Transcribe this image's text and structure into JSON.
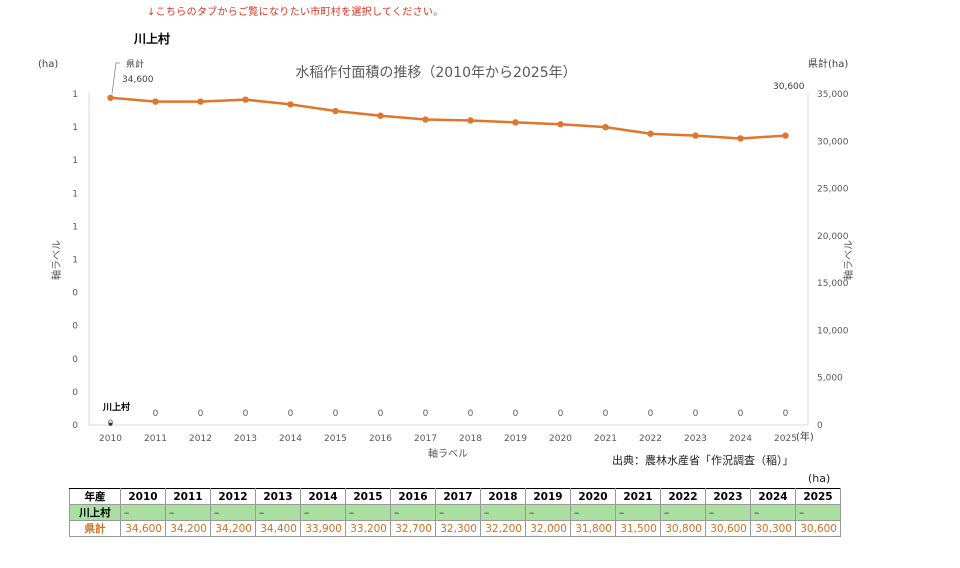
{
  "notice": "↓こちらのタブからご覧になりたい市町村を選択してください。",
  "village_name": "川上村",
  "source": "出典：農林水産省「作況調査（稲）」",
  "unit": "(ha)",
  "colors": {
    "prefecture_line": "#e0762d",
    "village_row_bg": "#a9dfa0",
    "notice": "#e03020"
  },
  "chart_data": {
    "type": "line",
    "title": "水稲作付面積の推移（2010年から2025年）",
    "x": [
      "2010",
      "2011",
      "2012",
      "2013",
      "2014",
      "2015",
      "2016",
      "2017",
      "2018",
      "2019",
      "2020",
      "2021",
      "2022",
      "2023",
      "2024",
      "2025"
    ],
    "x_unit": "(年)",
    "xlabel": "軸ラベル",
    "left_axis": {
      "label": "軸ラベル",
      "unit": "(ha)",
      "ticks": [
        "0",
        "0",
        "0",
        "0",
        "0",
        "1",
        "1",
        "1",
        "1",
        "1",
        "1"
      ]
    },
    "right_axis": {
      "label": "軸ラベル",
      "unit": "県計(ha)",
      "ylim": [
        0,
        35000
      ],
      "ticks": [
        "0",
        "5,000",
        "10,000",
        "15,000",
        "20,000",
        "25,000",
        "30,000",
        "35,000"
      ]
    },
    "series": [
      {
        "name": "県計",
        "axis": "right",
        "values": [
          34600,
          34200,
          34200,
          34400,
          33900,
          33200,
          32700,
          32300,
          32200,
          32000,
          31800,
          31500,
          30800,
          30600,
          30300,
          30600
        ]
      },
      {
        "name": "川上村",
        "axis": "left",
        "values": [
          0,
          0,
          0,
          0,
          0,
          0,
          0,
          0,
          0,
          0,
          0,
          0,
          0,
          0,
          0,
          0
        ]
      }
    ],
    "annotations": [
      {
        "series": "県計",
        "point": "2010",
        "text": "県計"
      },
      {
        "series": "県計",
        "point": "2010",
        "text": "34,600"
      },
      {
        "series": "県計",
        "point": "2025",
        "text": "30,600"
      },
      {
        "series": "川上村",
        "point": "2010",
        "text": "川上村"
      }
    ],
    "village_point_labels": [
      "0",
      "0",
      "0",
      "0",
      "0",
      "0",
      "0",
      "0",
      "0",
      "0",
      "0",
      "0",
      "0",
      "0",
      "0",
      "0"
    ]
  },
  "table": {
    "header_label": "年産",
    "years": [
      "2010",
      "2011",
      "2012",
      "2013",
      "2014",
      "2015",
      "2016",
      "2017",
      "2018",
      "2019",
      "2020",
      "2021",
      "2022",
      "2023",
      "2024",
      "2025"
    ],
    "rows": [
      {
        "label": "川上村",
        "values": [
          "–",
          "–",
          "–",
          "–",
          "–",
          "–",
          "–",
          "–",
          "–",
          "–",
          "–",
          "–",
          "–",
          "–",
          "–",
          "–"
        ]
      },
      {
        "label": "県計",
        "values": [
          "34,600",
          "34,200",
          "34,200",
          "34,400",
          "33,900",
          "33,200",
          "32,700",
          "32,300",
          "32,200",
          "32,000",
          "31,800",
          "31,500",
          "30,800",
          "30,600",
          "30,300",
          "30,600"
        ]
      }
    ]
  }
}
